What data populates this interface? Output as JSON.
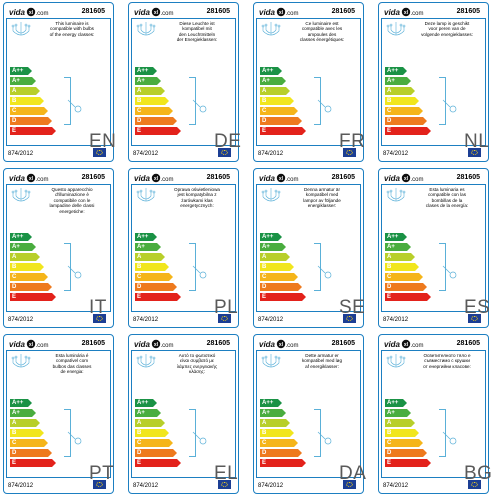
{
  "brand": {
    "logo_prefix": "vida",
    "logo_mark": "xl",
    "logo_suffix": ".com",
    "blue": "#1d7fc1"
  },
  "energy_classes": [
    {
      "letter": "A++",
      "color": "#1a9245"
    },
    {
      "letter": "A+",
      "color": "#4aad3f"
    },
    {
      "letter": "A",
      "color": "#b8cf2a"
    },
    {
      "letter": "B",
      "color": "#f1e61d"
    },
    {
      "letter": "C",
      "color": "#f5b51a"
    },
    {
      "letter": "D",
      "color": "#ee7a1e"
    },
    {
      "letter": "E",
      "color": "#e3221b"
    }
  ],
  "labels": [
    {
      "code": "281605",
      "lang": "EN",
      "regulation": "874/2012",
      "text": "This luminaire is\ncompatible with bulbs\nof the energy classes:"
    },
    {
      "code": "281605",
      "lang": "DE",
      "regulation": "874/2012",
      "text": "Diese Leuchte ist\nkompatibel mit\nden Leuchtmitteln\nder Energieklassen:"
    },
    {
      "code": "281605",
      "lang": "FR",
      "regulation": "874/2012",
      "text": "Ce luminaire est\ncompatible avec les\nampoules des\nclasses énergétiques:"
    },
    {
      "code": "281605",
      "lang": "NL",
      "regulation": "874/2012",
      "text": "Deze lamp is geschikt\nvoor peren van de\nvolgende energieklasses:"
    },
    {
      "code": "281605",
      "lang": "IT",
      "regulation": "874/2012",
      "text": "Questo apparecchio\nd'illuminazione è\ncompatibile con le\nlampadine delle classi\nenergetiche:"
    },
    {
      "code": "281605",
      "lang": "PL",
      "regulation": "874/2012",
      "text": "Oprawa oświetleniowa\njest kompatybilna z\nżarówkami klas\nenergetycznych:"
    },
    {
      "code": "281605",
      "lang": "SE",
      "regulation": "874/2012",
      "text": "Denna armatur är\nkompatibel med\nlampor av följande\nenergiklasser:"
    },
    {
      "code": "281605",
      "lang": "ES",
      "regulation": "874/2012",
      "text": "Esta luminaria es\ncompatible con las\nbombillas de la\nclases de la energía:"
    },
    {
      "code": "281605",
      "lang": "PT",
      "regulation": "874/2012",
      "text": "Esta luminária é\ncompatível com\nbulbos das classes\nde energia:"
    },
    {
      "code": "281605",
      "lang": "EL",
      "regulation": "874/2012",
      "text": "Αυτό το φωτιστικό\nείναι συμβατό με\nλάμπες ενεργειακής\nκλάσης:"
    },
    {
      "code": "281605",
      "lang": "DA",
      "regulation": "874/2012",
      "text": "Dette armatur er\nkompatibel med løg\naf energiklasser:"
    },
    {
      "code": "281605",
      "lang": "BG",
      "regulation": "874/2012",
      "text": "Осветителното тяло е\nсъвместимо с крушки\nот енергийни класове:"
    }
  ]
}
